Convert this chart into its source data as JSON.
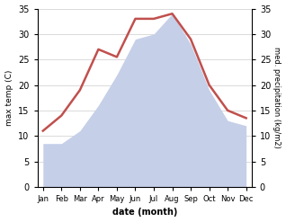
{
  "months": [
    "Jan",
    "Feb",
    "Mar",
    "Apr",
    "May",
    "Jun",
    "Jul",
    "Aug",
    "Sep",
    "Oct",
    "Nov",
    "Dec"
  ],
  "month_x": [
    1,
    2,
    3,
    4,
    5,
    6,
    7,
    8,
    9,
    10,
    11,
    12
  ],
  "temperature": [
    11,
    14,
    19,
    27,
    25.5,
    33,
    33,
    34,
    29,
    20,
    15,
    13.5
  ],
  "precipitation": [
    8.5,
    8.5,
    11,
    16,
    22,
    29,
    30,
    34,
    28,
    19,
    13,
    12
  ],
  "temp_color": "#c0504d",
  "precip_color_fill": "#c5cfe8",
  "temp_ylim": [
    0,
    35
  ],
  "precip_ylim": [
    0,
    35
  ],
  "xlabel": "date (month)",
  "ylabel_left": "max temp (C)",
  "ylabel_right": "med. precipitation (kg/m2)",
  "bg_color": "#ffffff",
  "grid_color": "#cccccc",
  "line_width": 1.8,
  "yticks": [
    0,
    5,
    10,
    15,
    20,
    25,
    30,
    35
  ]
}
